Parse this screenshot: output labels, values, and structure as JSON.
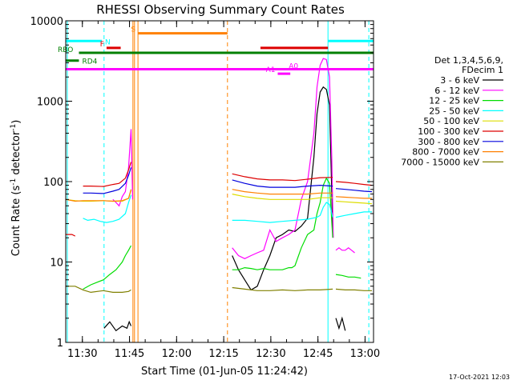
{
  "chart_data": {
    "type": "line",
    "title": "RHESSI Observing Summary Count Rates",
    "xlabel": "Start Time (01-Jun-05 11:24:42)",
    "ylabel_parts": [
      "Count Rate (s",
      "-1",
      " detector",
      "-1",
      ")"
    ],
    "yscale": "log",
    "ylim": [
      1,
      10000
    ],
    "xlim_minutes": [
      0,
      98
    ],
    "x_ticks": [
      {
        "m": 5.3,
        "label": "11:30"
      },
      {
        "m": 20.3,
        "label": "11:45"
      },
      {
        "m": 35.3,
        "label": "12:00"
      },
      {
        "m": 50.3,
        "label": "12:15"
      },
      {
        "m": 65.3,
        "label": "12:30"
      },
      {
        "m": 80.3,
        "label": "12:45"
      },
      {
        "m": 95.3,
        "label": "13:00"
      }
    ],
    "y_ticks": [
      {
        "v": 1,
        "label": "1"
      },
      {
        "v": 10,
        "label": "10"
      },
      {
        "v": 100,
        "label": "100"
      },
      {
        "v": 1000,
        "label": "1000"
      },
      {
        "v": 10000,
        "label": "10000"
      }
    ],
    "legend": {
      "header": [
        "Det 1,3,4,5,6,9,",
        "FDecim 1"
      ],
      "placement": "right"
    },
    "series": [
      {
        "name": "3 - 6 keV",
        "color": "#000000",
        "segments": [
          {
            "m": [
              12.2,
              14,
              16,
              18,
              19.5,
              20.2,
              20.8
            ],
            "v": [
              1.5,
              1.8,
              1.4,
              1.6,
              1.5,
              1.8,
              1.6
            ]
          },
          {
            "m": [
              53,
              55,
              57,
              59,
              61,
              63,
              65,
              67,
              69,
              71,
              73,
              75,
              77,
              79,
              80,
              81,
              82,
              83,
              84,
              85
            ],
            "v": [
              12,
              8,
              6,
              4.5,
              5,
              8,
              12,
              20,
              22,
              25,
              24,
              28,
              35,
              200,
              700,
              1300,
              1500,
              1400,
              900,
              25
            ]
          },
          {
            "m": [
              86,
              87,
              88,
              89
            ],
            "v": [
              2,
              1.5,
              2,
              1.4
            ]
          }
        ]
      },
      {
        "name": "6 - 12 keV",
        "color": "#ff00ff",
        "segments": [
          {
            "m": [
              15,
              16,
              17,
              18,
              19,
              20,
              20.8,
              21.3
            ],
            "v": [
              60,
              55,
              50,
              65,
              75,
              150,
              450,
              60
            ]
          },
          {
            "m": [
              53,
              55,
              57,
              59,
              61,
              63,
              65,
              67,
              69,
              71,
              73,
              75,
              77,
              79,
              80,
              81,
              82,
              83,
              84,
              84.7,
              85.2
            ],
            "v": [
              15,
              12,
              11,
              12,
              13,
              14,
              25,
              18,
              20,
              22,
              25,
              60,
              100,
              400,
              1500,
              2800,
              3400,
              3300,
              2000,
              200,
              20
            ]
          },
          {
            "m": [
              86,
              87,
              88,
              89,
              90,
              91,
              92
            ],
            "v": [
              14,
              15,
              14,
              14,
              15,
              14,
              13
            ]
          }
        ]
      },
      {
        "name": "12 - 25 keV",
        "color": "#00dd00",
        "segments": [
          {
            "m": [
              5.5,
              8,
              10,
              12,
              14,
              16,
              18,
              19,
              20,
              20.8
            ],
            "v": [
              4.6,
              5.2,
              5.6,
              6,
              7,
              8,
              10,
              12,
              14,
              16
            ]
          },
          {
            "m": [
              53,
              55,
              57,
              59,
              61,
              63,
              65,
              67,
              69,
              71,
              72,
              73,
              75,
              77,
              79,
              80,
              81,
              82,
              83,
              84,
              85
            ],
            "v": [
              8,
              8,
              8.5,
              8.3,
              8,
              8.3,
              8,
              8,
              8,
              8.5,
              8.5,
              9,
              15,
              22,
              25,
              40,
              55,
              90,
              110,
              95,
              20
            ]
          },
          {
            "m": [
              86,
              88,
              90,
              92,
              94
            ],
            "v": [
              7,
              6.8,
              6.5,
              6.5,
              6.3
            ]
          }
        ]
      },
      {
        "name": "25 - 50 keV",
        "color": "#00ffff",
        "segments": [
          {
            "m": [
              5.5,
              7,
              9,
              11,
              13,
              15,
              17,
              19,
              20,
              20.8
            ],
            "v": [
              35,
              33,
              34,
              32,
              31,
              32,
              34,
              40,
              55,
              68
            ]
          },
          {
            "m": [
              53,
              57,
              61,
              65,
              69,
              73,
              77,
              80,
              81,
              82,
              83,
              84,
              85
            ],
            "v": [
              33,
              33,
              32,
              31,
              32,
              33,
              34,
              36,
              38,
              48,
              55,
              52,
              36
            ]
          },
          {
            "m": [
              86,
              89,
              92,
              95,
              97.5
            ],
            "v": [
              36,
              38,
              40,
              42,
              42
            ]
          }
        ]
      },
      {
        "name": "50 - 100 keV",
        "color": "#dddd00",
        "segments": [
          {
            "m": [
              0,
              3,
              5.5,
              8,
              12,
              15,
              18,
              20,
              20.8
            ],
            "v": [
              60,
              58,
              57,
              57,
              58,
              57,
              57,
              62,
              78
            ]
          },
          {
            "m": [
              53,
              57,
              61,
              65,
              69,
              73,
              77,
              81,
              85
            ],
            "v": [
              70,
              65,
              62,
              60,
              60,
              60,
              60,
              63,
              63
            ]
          },
          {
            "m": [
              86,
              89,
              92,
              95,
              97.5
            ],
            "v": [
              57,
              56,
              55,
              54,
              53
            ]
          }
        ]
      },
      {
        "name": "100 - 300 keV",
        "color": "#dd0000",
        "segments": [
          {
            "m": [
              0,
              2,
              3
            ],
            "v": [
              22,
              22,
              21
            ]
          },
          {
            "m": [
              5.5,
              8,
              12,
              15,
              17,
              19,
              20,
              20.8
            ],
            "v": [
              88,
              88,
              87,
              92,
              95,
              110,
              140,
              175
            ]
          },
          {
            "m": [
              53,
              57,
              61,
              65,
              69,
              73,
              77,
              81,
              85
            ],
            "v": [
              125,
              115,
              108,
              105,
              105,
              103,
              107,
              112,
              113
            ]
          },
          {
            "m": [
              86,
              89,
              92,
              95,
              97.5
            ],
            "v": [
              100,
              98,
              95,
              92,
              90
            ]
          }
        ]
      },
      {
        "name": "300 - 800 keV",
        "color": "#0000dd",
        "segments": [
          {
            "m": [
              5.5,
              8,
              12,
              15,
              17,
              19,
              20,
              20.8
            ],
            "v": [
              72,
              72,
              71,
              76,
              80,
              95,
              120,
              150
            ]
          },
          {
            "m": [
              53,
              57,
              61,
              65,
              69,
              73,
              77,
              81,
              85
            ],
            "v": [
              105,
              95,
              88,
              85,
              85,
              85,
              88,
              90,
              88
            ]
          },
          {
            "m": [
              86,
              89,
              92,
              95,
              97.5
            ],
            "v": [
              82,
              80,
              78,
              76,
              75
            ]
          }
        ]
      },
      {
        "name": "800 - 7000 keV",
        "color": "#ff8000",
        "segments": [
          {
            "m": [
              0,
              3,
              5.5,
              8,
              12,
              15,
              18,
              20,
              20.8
            ],
            "v": [
              60,
              57,
              58,
              58,
              58,
              57,
              58,
              62,
              80
            ]
          },
          {
            "m": [
              53,
              57,
              61,
              65,
              69,
              73,
              77,
              81,
              85
            ],
            "v": [
              80,
              75,
              72,
              70,
              70,
              70,
              70,
              72,
              72
            ]
          },
          {
            "m": [
              86,
              89,
              92,
              95,
              97.5
            ],
            "v": [
              65,
              64,
              63,
              62,
              62
            ]
          }
        ]
      },
      {
        "name": "7000 - 15000 keV",
        "color": "#808000",
        "segments": [
          {
            "m": [
              0,
              3,
              5.5,
              8,
              12,
              15,
              18,
              20,
              20.8
            ],
            "v": [
              5,
              5,
              4.5,
              4.2,
              4.4,
              4.2,
              4.2,
              4.3,
              4.5
            ]
          },
          {
            "m": [
              53,
              57,
              61,
              65,
              69,
              73,
              77,
              81,
              85
            ],
            "v": [
              4.8,
              4.6,
              4.4,
              4.4,
              4.5,
              4.4,
              4.5,
              4.5,
              4.6
            ]
          },
          {
            "m": [
              86,
              89,
              92,
              95,
              97.5
            ],
            "v": [
              4.6,
              4.5,
              4.5,
              4.4,
              4.4
            ]
          }
        ]
      }
    ],
    "flag_bars": [
      {
        "label": "RBO",
        "color": "#008000",
        "m_start": 4.2,
        "m_end": 98,
        "v": 4000,
        "label_side": "left"
      },
      {
        "label": "RD4",
        "color": "#008000",
        "m_start": 0,
        "m_end": 4.2,
        "v": 3200,
        "label_side": "right"
      },
      {
        "label": "N",
        "color": "#00ffff",
        "m_start": 0,
        "m_end": 11.5,
        "v": 5600,
        "label_side": "right"
      },
      {
        "label": "N",
        "color": "#00ffff",
        "m_start": 83.5,
        "m_end": 98,
        "v": 5600,
        "label_side": "none"
      },
      {
        "label": "F",
        "color": "#dd0000",
        "m_start": 13,
        "m_end": 17.5,
        "v": 4600,
        "label_side": "left"
      },
      {
        "label": "F",
        "color": "#dd0000",
        "m_start": 62,
        "m_end": 83.5,
        "v": 4600,
        "label_side": "none"
      },
      {
        "label": "S",
        "color": "#ff8000",
        "m_start": 23,
        "m_end": 51.5,
        "v": 7000,
        "label_side": "left"
      },
      {
        "label": "A0",
        "color": "#ff00ff",
        "m_start": 0,
        "m_end": 98,
        "v": 2500,
        "label_side": "above"
      },
      {
        "label": "A1",
        "color": "#ff00ff",
        "m_start": 67.5,
        "m_end": 71.5,
        "v": 2200,
        "label_side": "left"
      }
    ],
    "vertical_lines": [
      {
        "m": 0.5,
        "color": "#00ffff",
        "dashed": false
      },
      {
        "m": 12.2,
        "color": "#00ffff",
        "dashed": true
      },
      {
        "m": 21.4,
        "color": "#ff8000",
        "dashed": false
      },
      {
        "m": 21.9,
        "color": "#ff8000",
        "dashed": false
      },
      {
        "m": 23,
        "color": "#ff8000",
        "dashed": false
      },
      {
        "m": 51.5,
        "color": "#ff8000",
        "dashed": true
      },
      {
        "m": 83.5,
        "color": "#00ffff",
        "dashed": false
      },
      {
        "m": 96.5,
        "color": "#00ffff",
        "dashed": true
      }
    ],
    "grid": false
  },
  "footer": {
    "timestamp": "17-Oct-2021 12:03"
  }
}
